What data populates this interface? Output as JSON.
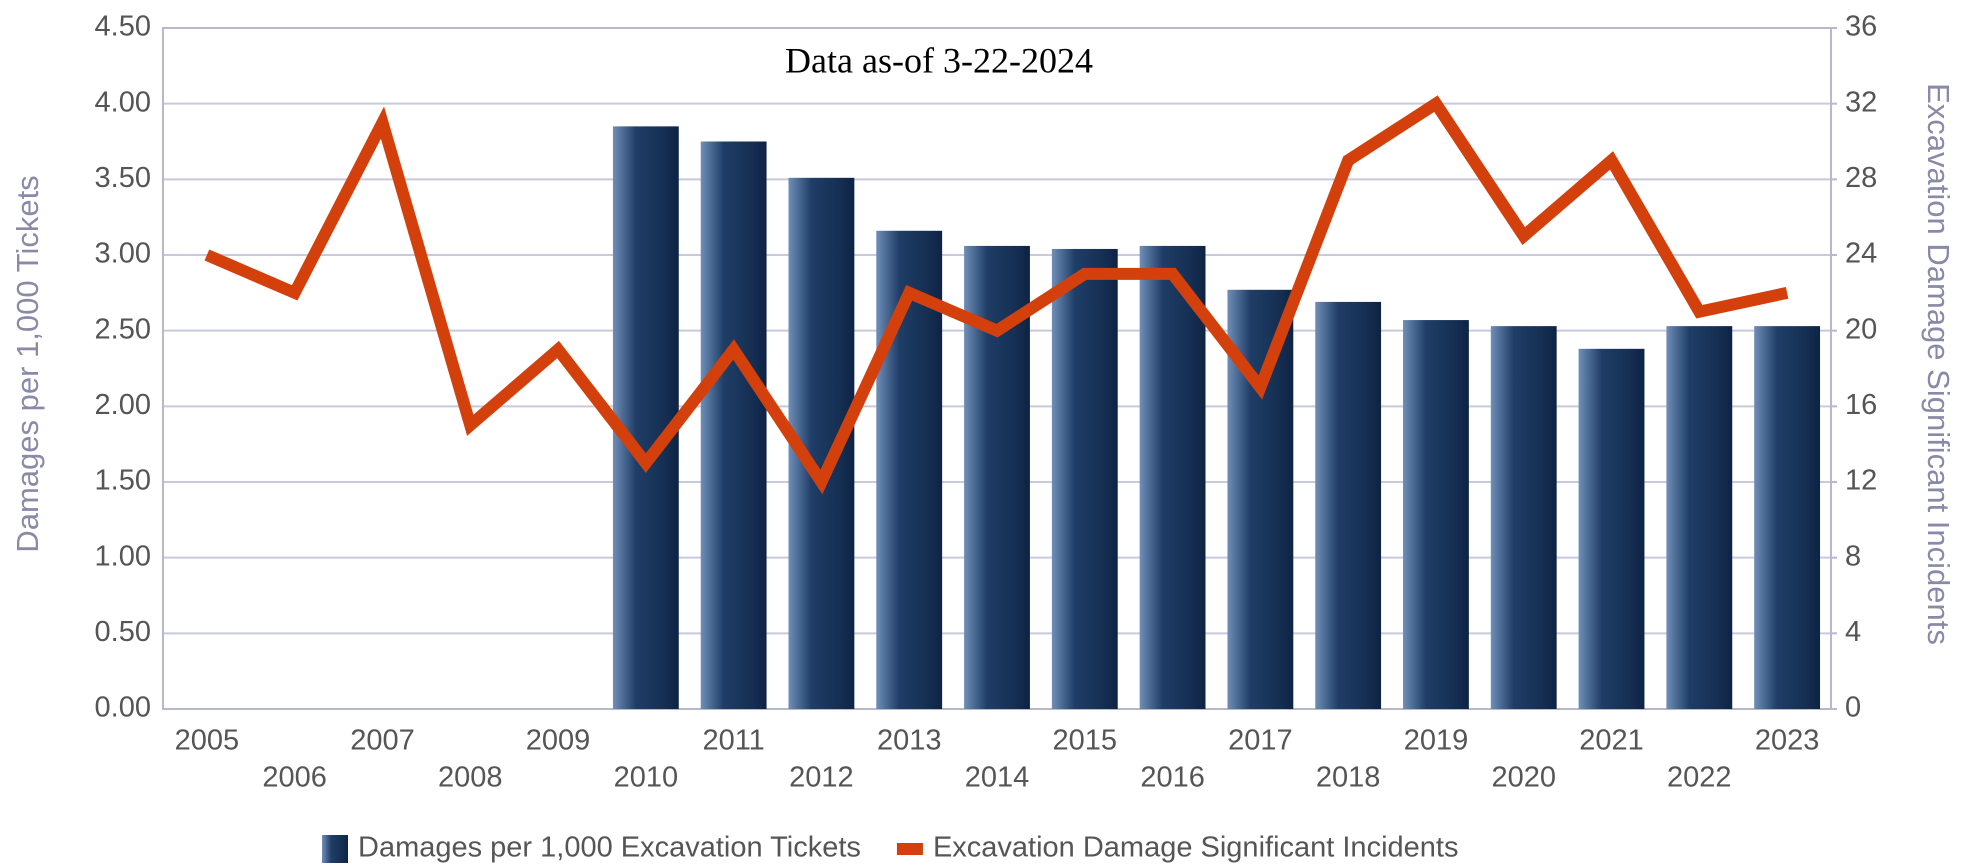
{
  "chart_data": {
    "type": "bar",
    "annotation": "Data as-of 3-22-2024",
    "y_label": "Damages per 1,000 Tickets",
    "y2_label": "Excavation Damage Significant Incidents",
    "categories": [
      "2005",
      "2006",
      "2007",
      "2008",
      "2009",
      "2010",
      "2011",
      "2012",
      "2013",
      "2014",
      "2015",
      "2016",
      "2017",
      "2018",
      "2019",
      "2020",
      "2021",
      "2022",
      "2023"
    ],
    "series": [
      {
        "name": "Damages per 1,000 Excavation Tickets",
        "type": "bar",
        "color": "#1f3d66",
        "values": [
          null,
          null,
          null,
          null,
          null,
          3.85,
          3.75,
          3.51,
          3.16,
          3.06,
          3.04,
          3.06,
          2.77,
          2.69,
          2.57,
          2.53,
          2.38,
          2.53,
          2.53
        ]
      },
      {
        "name": "Excavation Damage Significant Incidents",
        "type": "line",
        "axis": "y2",
        "color": "#d4400c",
        "values": [
          24,
          22,
          31,
          15,
          19,
          13,
          19,
          12,
          22,
          20,
          23,
          23,
          17,
          29,
          32,
          25,
          29,
          21,
          22
        ]
      }
    ],
    "ylim": [
      0,
      4.5
    ],
    "yticks": [
      {
        "value": 0,
        "label": "0.00"
      },
      {
        "value": 0.5,
        "label": "0.50"
      },
      {
        "value": 1,
        "label": "1.00"
      },
      {
        "value": 1.5,
        "label": "1.50"
      },
      {
        "value": 2,
        "label": "2.00"
      },
      {
        "value": 2.5,
        "label": "2.50"
      },
      {
        "value": 3,
        "label": "3.00"
      },
      {
        "value": 3.5,
        "label": "3.50"
      },
      {
        "value": 4,
        "label": "4.00"
      },
      {
        "value": 4.5,
        "label": "4.50"
      }
    ],
    "y2lim": [
      0,
      36
    ],
    "y2ticks": [
      0,
      4,
      8,
      12,
      16,
      20,
      24,
      28,
      32,
      36
    ],
    "grid": true,
    "legend": "bottom"
  }
}
